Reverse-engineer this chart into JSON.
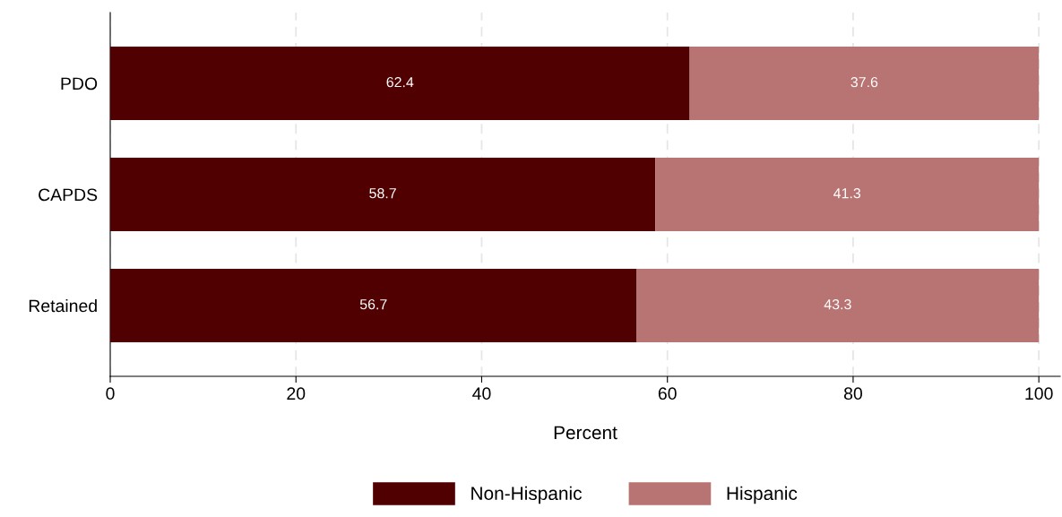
{
  "chart_data": {
    "type": "bar",
    "orientation": "horizontal",
    "stacked": true,
    "categories": [
      "PDO",
      "CAPDS",
      "Retained"
    ],
    "series": [
      {
        "name": "Non-Hispanic",
        "color": "#500000",
        "values": [
          62.4,
          58.7,
          56.7
        ]
      },
      {
        "name": "Hispanic",
        "color": "#b87472",
        "values": [
          37.6,
          41.3,
          43.3
        ]
      }
    ],
    "xlabel": "Percent",
    "xlim": [
      0,
      102.3
    ],
    "xticks": [
      0,
      20,
      40,
      60,
      80,
      100
    ],
    "grid": "x",
    "legend": "bottom",
    "data_labels": true
  }
}
